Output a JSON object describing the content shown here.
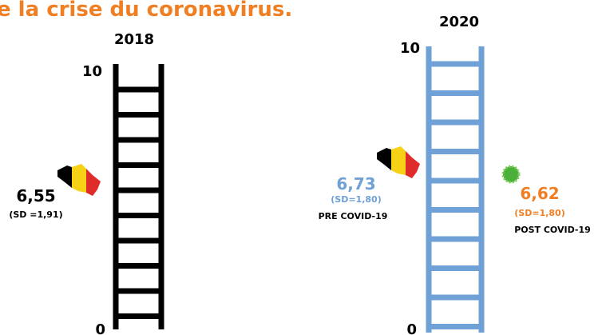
{
  "title": "e la crise du coronavirus.",
  "panels": [
    {
      "year": "2018",
      "scale_top": "10",
      "scale_bottom": "0",
      "groups": [
        {
          "value": "6,55",
          "sd": "(SD =1,91)"
        }
      ]
    },
    {
      "year": "2020",
      "scale_top": "10",
      "scale_bottom": "0",
      "groups": [
        {
          "value": "6,73",
          "sd": "(SD=1,80)",
          "label": "PRE COVID-19"
        },
        {
          "value": "6,62",
          "sd": "(SD=1,80)",
          "label": "POST COVID-19"
        }
      ]
    }
  ]
}
